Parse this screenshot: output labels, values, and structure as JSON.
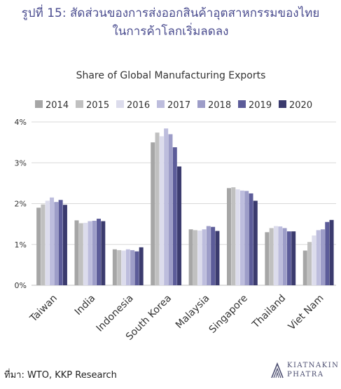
{
  "header": {
    "line1": "รูปที่ 15: สัดส่วนของการส่งออกสินค้าอุตสาหกรรมของไทย",
    "line2": "ในการค้าโลกเริ่มลดลง"
  },
  "chart_data": {
    "type": "bar",
    "title": "Share of Global Manufacturing Exports",
    "xlabel": "",
    "ylabel": "",
    "ylim": [
      0,
      4
    ],
    "yticks": [
      "0%",
      "1%",
      "2%",
      "3%",
      "4%"
    ],
    "grid": true,
    "legend_position": "top",
    "categories": [
      "Taiwan",
      "India",
      "Indonesia",
      "South Korea",
      "Malaysia",
      "Singapore",
      "Thailand",
      "Viet Nam"
    ],
    "series": [
      {
        "name": "2014",
        "color": "#a6a6a6",
        "values": [
          1.9,
          1.59,
          0.88,
          3.5,
          1.37,
          2.38,
          1.3,
          0.85
        ]
      },
      {
        "name": "2015",
        "color": "#c0c0c0",
        "values": [
          1.98,
          1.52,
          0.86,
          3.74,
          1.35,
          2.4,
          1.4,
          1.06
        ]
      },
      {
        "name": "2016",
        "color": "#dcdcec",
        "values": [
          2.07,
          1.53,
          0.85,
          3.65,
          1.34,
          2.35,
          1.45,
          1.22
        ]
      },
      {
        "name": "2017",
        "color": "#bdbddd",
        "values": [
          2.15,
          1.57,
          0.88,
          3.84,
          1.37,
          2.32,
          1.44,
          1.35
        ]
      },
      {
        "name": "2018",
        "color": "#9d9dc8",
        "values": [
          2.04,
          1.58,
          0.86,
          3.7,
          1.45,
          2.31,
          1.4,
          1.37
        ]
      },
      {
        "name": "2019",
        "color": "#5c5c99",
        "values": [
          2.09,
          1.63,
          0.83,
          3.38,
          1.43,
          2.25,
          1.32,
          1.55
        ]
      },
      {
        "name": "2020",
        "color": "#3b3b6e",
        "values": [
          1.97,
          1.57,
          0.93,
          2.91,
          1.33,
          2.07,
          1.32,
          1.6
        ]
      }
    ]
  },
  "footer": {
    "source": "ที่มา: WTO, KKP Research",
    "logo_line1": "KIATNAKIN",
    "logo_line2": "PHATRA"
  }
}
